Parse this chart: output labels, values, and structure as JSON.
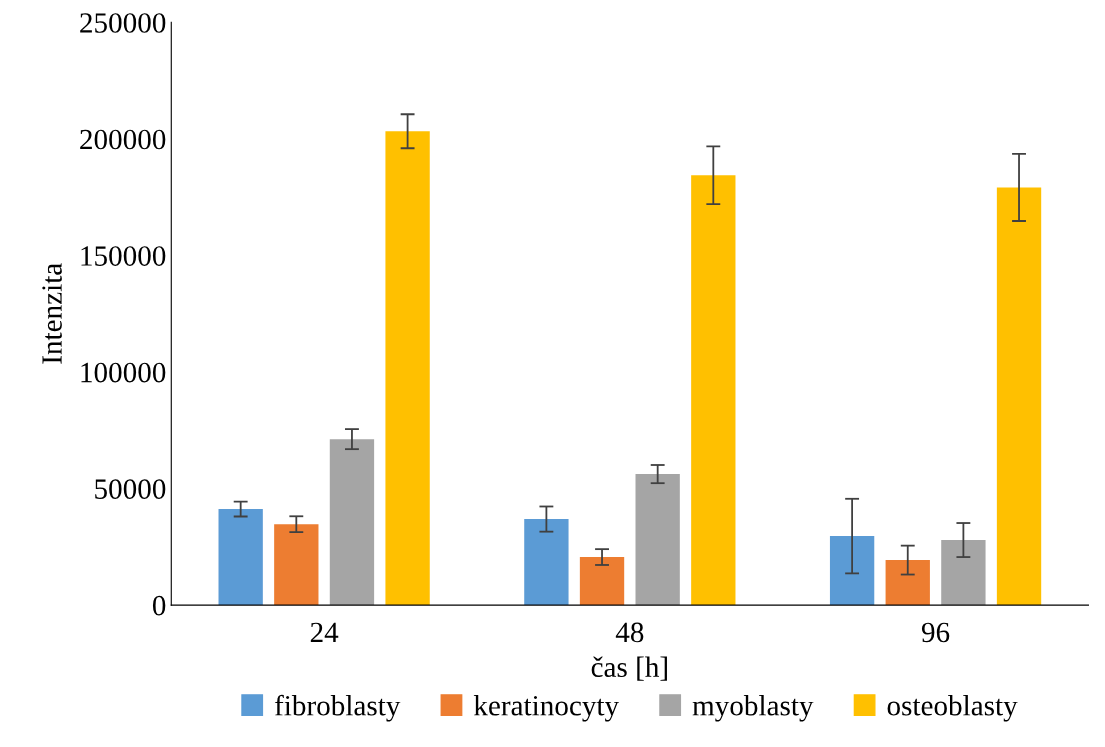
{
  "chart_data": {
    "type": "bar",
    "xlabel": "čas [h]",
    "ylabel": "Intenzita",
    "categories": [
      "24",
      "48",
      "96"
    ],
    "series": [
      {
        "name": "fibroblasty",
        "color": "#5b9bd5",
        "values": [
          41200,
          36900,
          29600
        ],
        "errors": [
          3200,
          5400,
          16000
        ]
      },
      {
        "name": "keratinocyty",
        "color": "#ed7d31",
        "values": [
          34700,
          20600,
          19300
        ],
        "errors": [
          3400,
          3400,
          6200
        ]
      },
      {
        "name": "myoblasty",
        "color": "#a5a5a5",
        "values": [
          71200,
          56200,
          27900
        ],
        "errors": [
          4300,
          3900,
          7300
        ]
      },
      {
        "name": "osteoblasty",
        "color": "#ffc000",
        "values": [
          203300,
          184400,
          179200
        ],
        "errors": [
          7300,
          12400,
          14400
        ]
      }
    ],
    "ylim": [
      0,
      250000
    ],
    "yticks": [
      0,
      50000,
      100000,
      150000,
      200000,
      250000
    ],
    "grid": false,
    "legend": "bottom"
  }
}
